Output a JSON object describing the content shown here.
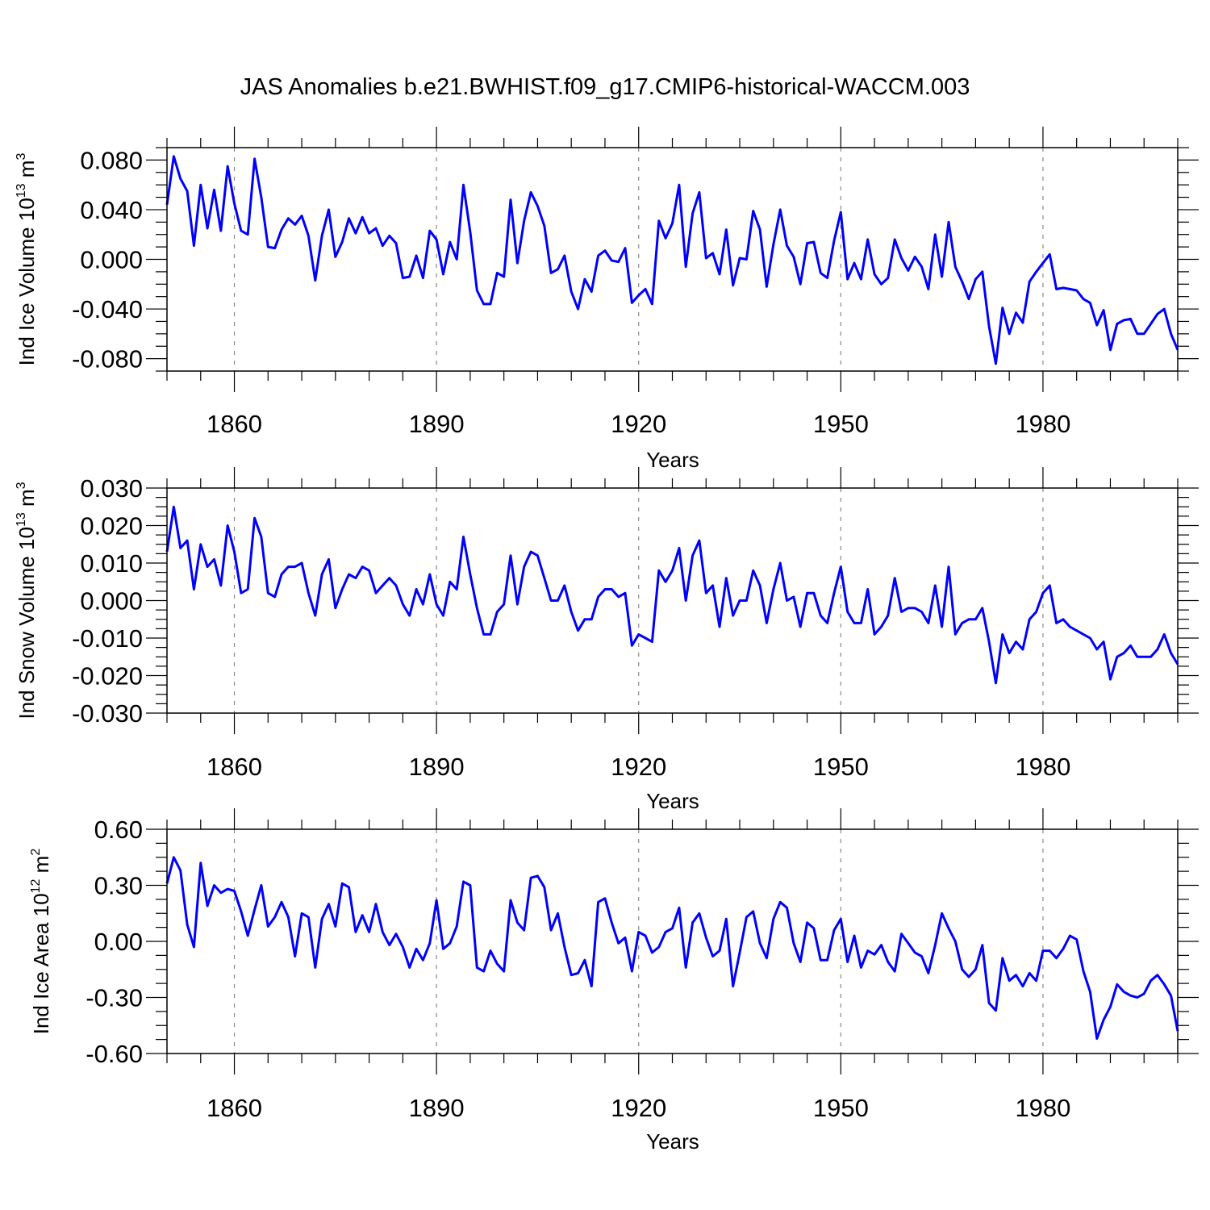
{
  "chart_data": [
    {
      "type": "line",
      "title": "JAS Anomalies b.e21.BWHIST.f09_g17.CMIP6-historical-WACCM.003",
      "xlabel": "Years",
      "ylabel_main": "Ind Ice Volume 10",
      "ylabel_exp": "13",
      "ylabel_unit": " m",
      "ylabel_unit_exp": "3",
      "xlim": [
        1850,
        2000
      ],
      "ylim": [
        -0.09,
        0.09
      ],
      "xticks": [
        "1860",
        "1890",
        "1920",
        "1950",
        "1980"
      ],
      "yticks": [
        "0.080",
        "0.040",
        "0.000",
        "-0.040",
        "-0.080"
      ],
      "series": [
        {
          "name": "Ind Ice Volume",
          "color": "#0000ff",
          "x_start": 1850,
          "values": [
            0.044,
            0.083,
            0.065,
            0.055,
            0.011,
            0.06,
            0.025,
            0.056,
            0.023,
            0.075,
            0.045,
            0.023,
            0.02,
            0.081,
            0.05,
            0.01,
            0.009,
            0.024,
            0.033,
            0.028,
            0.035,
            0.019,
            -0.017,
            0.019,
            0.04,
            0.002,
            0.014,
            0.033,
            0.021,
            0.034,
            0.021,
            0.025,
            0.011,
            0.019,
            0.013,
            -0.015,
            -0.014,
            0.003,
            -0.015,
            0.023,
            0.016,
            -0.012,
            0.014,
            0.0,
            0.06,
            0.022,
            -0.025,
            -0.036,
            -0.036,
            -0.011,
            -0.014,
            0.048,
            -0.003,
            0.031,
            0.054,
            0.043,
            0.027,
            -0.011,
            -0.008,
            0.003,
            -0.026,
            -0.04,
            -0.016,
            -0.026,
            0.003,
            0.007,
            -0.001,
            -0.002,
            0.009,
            -0.035,
            -0.029,
            -0.024,
            -0.036,
            0.031,
            0.017,
            0.029,
            0.06,
            -0.006,
            0.037,
            0.054,
            0.001,
            0.005,
            -0.012,
            0.024,
            -0.021,
            0.001,
            0.0,
            0.039,
            0.024,
            -0.022,
            0.012,
            0.04,
            0.011,
            0.002,
            -0.02,
            0.013,
            0.014,
            -0.011,
            -0.015,
            0.015,
            0.038,
            -0.016,
            -0.003,
            -0.016,
            0.016,
            -0.012,
            -0.02,
            -0.015,
            0.016,
            0.001,
            -0.009,
            0.002,
            -0.006,
            -0.024,
            0.02,
            -0.014,
            0.03,
            -0.006,
            -0.018,
            -0.032,
            -0.016,
            -0.01,
            -0.054,
            -0.084,
            -0.039,
            -0.06,
            -0.043,
            -0.051,
            -0.018,
            -0.01,
            -0.003,
            0.004,
            -0.024,
            -0.023,
            -0.024,
            -0.025,
            -0.032,
            -0.035,
            -0.053,
            -0.041,
            -0.073,
            -0.052,
            -0.049,
            -0.048,
            -0.06,
            -0.06,
            -0.052,
            -0.044,
            -0.04,
            -0.06,
            -0.073
          ]
        }
      ]
    },
    {
      "type": "line",
      "xlabel": "Years",
      "ylabel_main": "Ind Snow Volume 10",
      "ylabel_exp": "13",
      "ylabel_unit": " m",
      "ylabel_unit_exp": "3",
      "xlim": [
        1850,
        2000
      ],
      "ylim": [
        -0.03,
        0.03
      ],
      "xticks": [
        "1860",
        "1890",
        "1920",
        "1950",
        "1980"
      ],
      "yticks": [
        "0.030",
        "0.020",
        "0.010",
        "0.000",
        "-0.010",
        "-0.020",
        "-0.030"
      ],
      "series": [
        {
          "name": "Ind Snow Volume",
          "color": "#0000ff",
          "x_start": 1850,
          "values": [
            0.013,
            0.025,
            0.014,
            0.016,
            0.003,
            0.015,
            0.009,
            0.011,
            0.004,
            0.02,
            0.013,
            0.002,
            0.003,
            0.022,
            0.017,
            0.002,
            0.001,
            0.007,
            0.009,
            0.009,
            0.01,
            0.002,
            -0.004,
            0.007,
            0.011,
            -0.002,
            0.003,
            0.007,
            0.006,
            0.009,
            0.008,
            0.002,
            0.004,
            0.006,
            0.004,
            -0.001,
            -0.004,
            0.003,
            -0.001,
            0.007,
            -0.001,
            -0.004,
            0.005,
            0.003,
            0.017,
            0.007,
            -0.002,
            -0.009,
            -0.009,
            -0.003,
            -0.001,
            0.012,
            -0.001,
            0.009,
            0.013,
            0.012,
            0.006,
            0.0,
            0.0,
            0.004,
            -0.003,
            -0.008,
            -0.005,
            -0.005,
            0.001,
            0.003,
            0.003,
            0.001,
            0.002,
            -0.012,
            -0.009,
            -0.01,
            -0.011,
            0.008,
            0.005,
            0.008,
            0.014,
            0.0,
            0.012,
            0.016,
            0.002,
            0.004,
            -0.007,
            0.006,
            -0.004,
            0.0,
            0.0,
            0.008,
            0.004,
            -0.006,
            0.003,
            0.01,
            0.0,
            0.001,
            -0.007,
            0.002,
            0.002,
            -0.004,
            -0.006,
            0.002,
            0.009,
            -0.003,
            -0.006,
            -0.006,
            0.003,
            -0.009,
            -0.007,
            -0.004,
            0.006,
            -0.003,
            -0.002,
            -0.002,
            -0.003,
            -0.006,
            0.004,
            -0.007,
            0.009,
            -0.009,
            -0.006,
            -0.005,
            -0.005,
            -0.002,
            -0.011,
            -0.022,
            -0.009,
            -0.014,
            -0.011,
            -0.013,
            -0.005,
            -0.003,
            0.002,
            0.004,
            -0.006,
            -0.005,
            -0.007,
            -0.008,
            -0.009,
            -0.01,
            -0.013,
            -0.011,
            -0.021,
            -0.015,
            -0.014,
            -0.012,
            -0.015,
            -0.015,
            -0.015,
            -0.013,
            -0.009,
            -0.014,
            -0.017
          ]
        }
      ]
    },
    {
      "type": "line",
      "xlabel": "Years",
      "ylabel_main": "Ind Ice Area 10",
      "ylabel_exp": "12",
      "ylabel_unit": " m",
      "ylabel_unit_exp": "2",
      "xlim": [
        1850,
        2000
      ],
      "ylim": [
        -0.6,
        0.6
      ],
      "xticks": [
        "1860",
        "1890",
        "1920",
        "1950",
        "1980"
      ],
      "yticks": [
        "0.60",
        "0.30",
        "0.00",
        "-0.30",
        "-0.60"
      ],
      "series": [
        {
          "name": "Ind Ice Area",
          "color": "#0000ff",
          "x_start": 1850,
          "values": [
            0.31,
            0.45,
            0.38,
            0.09,
            -0.03,
            0.42,
            0.19,
            0.3,
            0.26,
            0.28,
            0.27,
            0.16,
            0.03,
            0.17,
            0.3,
            0.08,
            0.13,
            0.21,
            0.13,
            -0.08,
            0.15,
            0.13,
            -0.14,
            0.12,
            0.2,
            0.08,
            0.31,
            0.29,
            0.05,
            0.14,
            0.05,
            0.2,
            0.05,
            -0.02,
            0.04,
            -0.03,
            -0.14,
            -0.04,
            -0.1,
            -0.01,
            0.22,
            -0.04,
            -0.01,
            0.08,
            0.32,
            0.3,
            -0.14,
            -0.16,
            -0.05,
            -0.12,
            -0.16,
            0.22,
            0.1,
            0.06,
            0.34,
            0.35,
            0.29,
            0.06,
            0.15,
            -0.03,
            -0.18,
            -0.17,
            -0.1,
            -0.24,
            0.21,
            0.23,
            0.1,
            -0.01,
            0.02,
            -0.16,
            0.05,
            0.03,
            -0.06,
            -0.03,
            0.05,
            0.07,
            0.18,
            -0.14,
            0.1,
            0.15,
            0.02,
            -0.08,
            -0.05,
            0.12,
            -0.24,
            -0.06,
            0.13,
            0.16,
            -0.01,
            -0.09,
            0.12,
            0.21,
            0.18,
            -0.01,
            -0.11,
            0.1,
            0.07,
            -0.1,
            -0.1,
            0.06,
            0.12,
            -0.11,
            0.03,
            -0.14,
            -0.05,
            -0.07,
            -0.02,
            -0.11,
            -0.16,
            0.04,
            -0.01,
            -0.06,
            -0.08,
            -0.17,
            -0.02,
            0.15,
            0.07,
            0.0,
            -0.15,
            -0.19,
            -0.15,
            -0.02,
            -0.33,
            -0.37,
            -0.09,
            -0.21,
            -0.18,
            -0.24,
            -0.17,
            -0.21,
            -0.05,
            -0.05,
            -0.09,
            -0.04,
            0.03,
            0.01,
            -0.16,
            -0.27,
            -0.52,
            -0.42,
            -0.35,
            -0.23,
            -0.27,
            -0.29,
            -0.3,
            -0.28,
            -0.21,
            -0.18,
            -0.23,
            -0.29,
            -0.48
          ]
        }
      ]
    }
  ]
}
